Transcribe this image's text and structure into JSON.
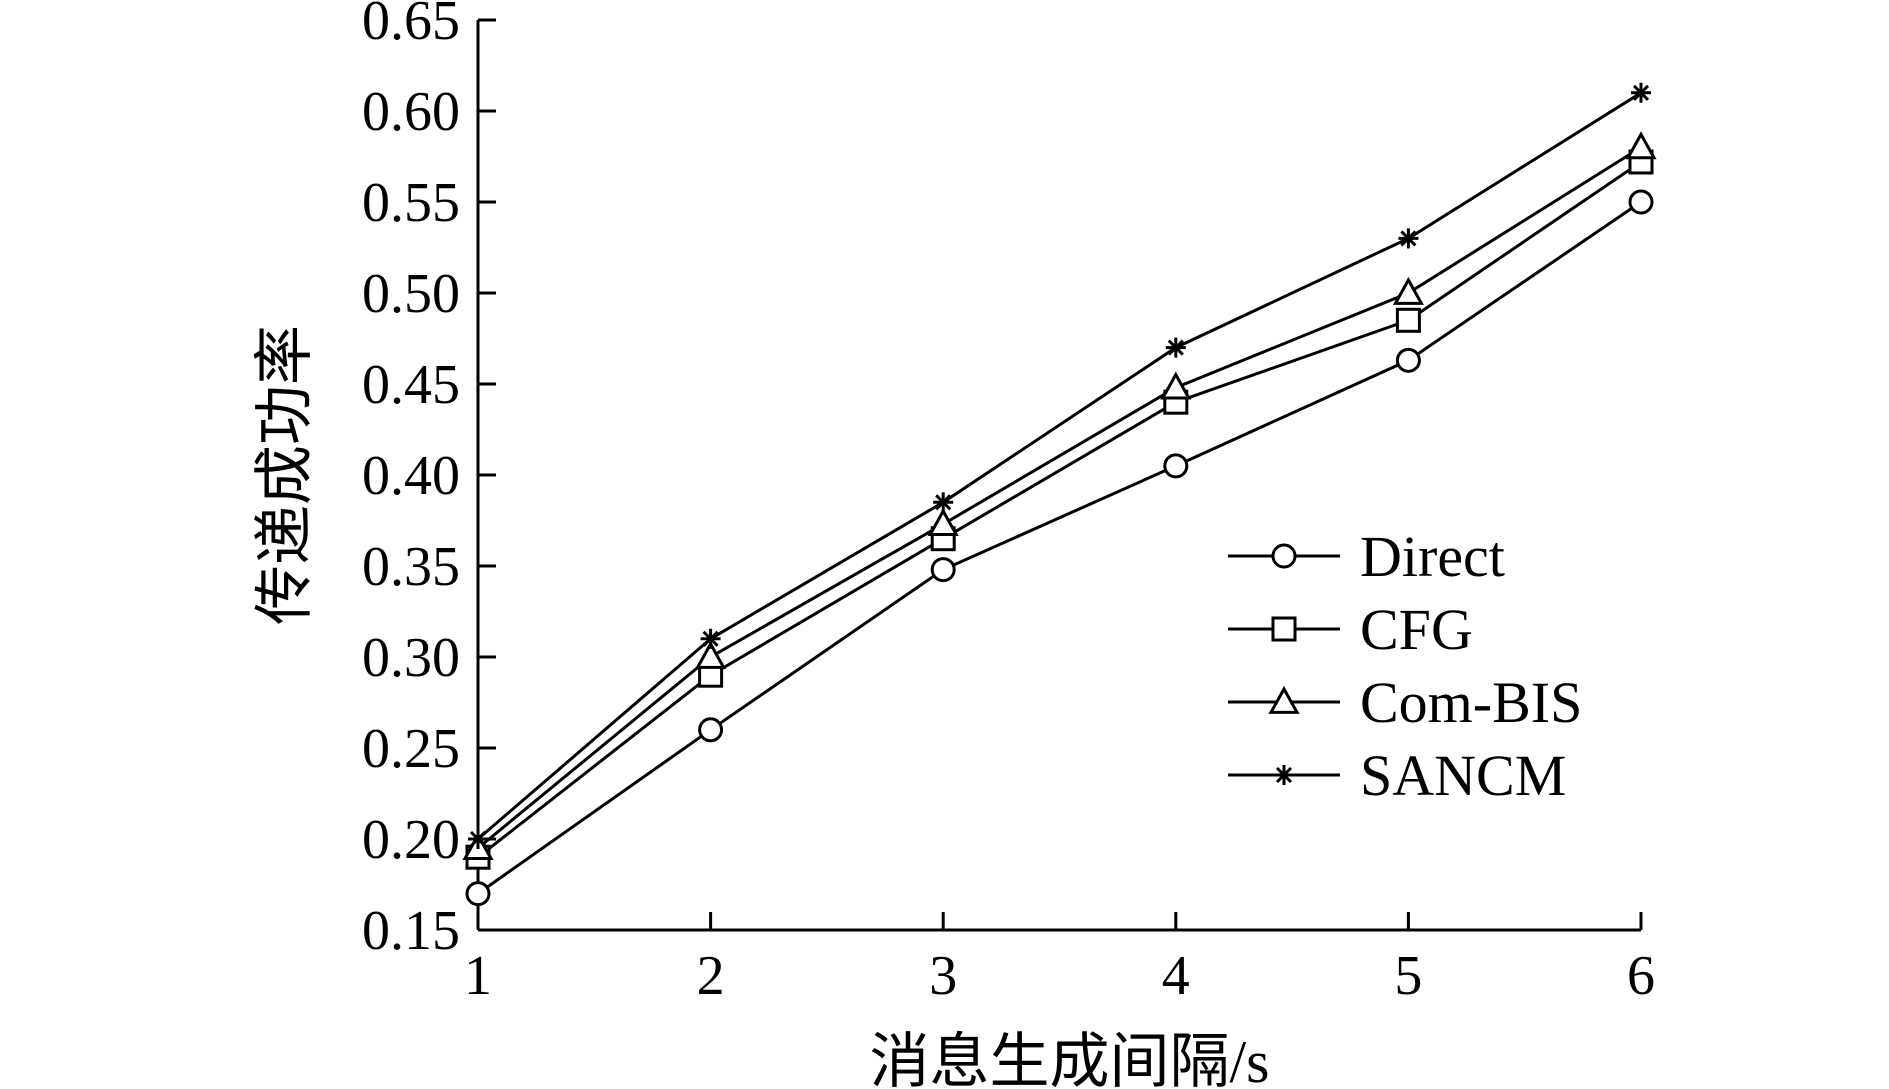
{
  "chart_data": {
    "type": "line",
    "title": "",
    "xlabel": "消息生成间隔/s",
    "ylabel": "传递成功率",
    "x": [
      1,
      2,
      3,
      4,
      5,
      6
    ],
    "x_tick_labels": [
      "1",
      "2",
      "3",
      "4",
      "5",
      "6"
    ],
    "xlim": [
      1,
      6
    ],
    "ylim": [
      0.15,
      0.65
    ],
    "y_ticks": [
      0.15,
      0.2,
      0.25,
      0.3,
      0.35,
      0.4,
      0.45,
      0.5,
      0.55,
      0.6,
      0.65
    ],
    "y_tick_labels": [
      "0.15",
      "0.20",
      "0.25",
      "0.30",
      "0.35",
      "0.40",
      "0.45",
      "0.50",
      "0.55",
      "0.60",
      "0.65"
    ],
    "grid": false,
    "legend_position": "right-middle",
    "line_color": "#000000",
    "series": [
      {
        "name": "Direct",
        "marker": "circle",
        "values": [
          0.17,
          0.26,
          0.348,
          0.405,
          0.463,
          0.55
        ]
      },
      {
        "name": "CFG",
        "marker": "square",
        "values": [
          0.19,
          0.29,
          0.365,
          0.44,
          0.485,
          0.572
        ]
      },
      {
        "name": "Com-BIS",
        "marker": "triangle",
        "values": [
          0.195,
          0.3,
          0.373,
          0.448,
          0.5,
          0.58
        ]
      },
      {
        "name": "SANCM",
        "marker": "star",
        "values": [
          0.2,
          0.31,
          0.385,
          0.47,
          0.53,
          0.61
        ]
      }
    ]
  }
}
